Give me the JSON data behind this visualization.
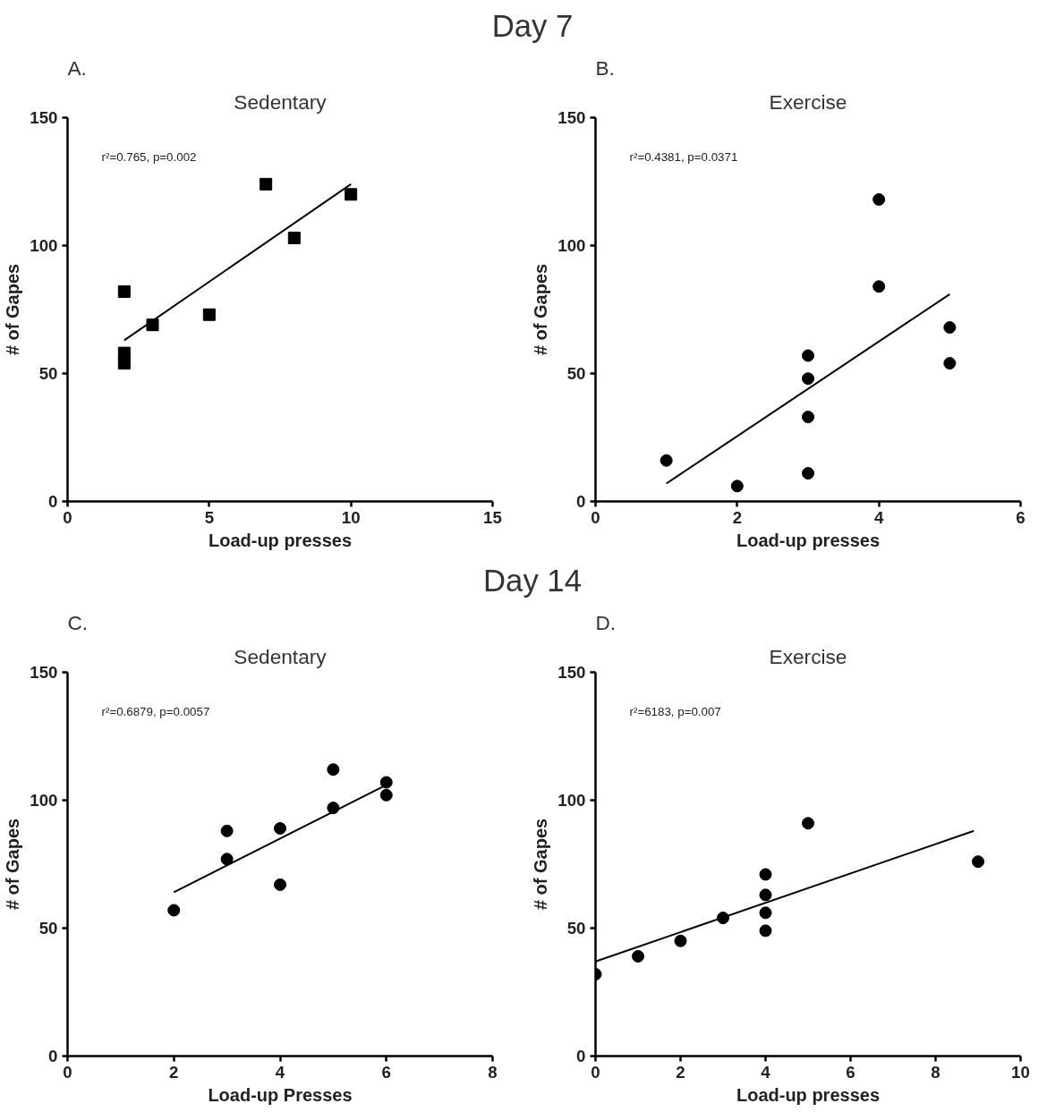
{
  "chart_data": [
    {
      "type": "scatter",
      "title": "Sedentary",
      "xlabel": "Load-up presses",
      "ylabel": "# of Gapes",
      "grid": false,
      "annotations": [
        "A.",
        "r²=0.765, p=0.002",
        "Day 7"
      ],
      "xlim": [
        0,
        15
      ],
      "xticks": [
        0,
        5,
        10,
        15
      ],
      "ylim": [
        0,
        150
      ],
      "yticks": [
        0,
        50,
        100,
        150
      ],
      "series": [
        {
          "marker": "square",
          "color": "#000000",
          "x": [
            2,
            2,
            2,
            3,
            5,
            7,
            8,
            10
          ],
          "values": [
            82,
            58,
            54,
            69,
            73,
            124,
            103,
            120
          ]
        },
        {
          "type": "line",
          "marker": "none",
          "color": "#000000",
          "x": [
            2,
            10
          ],
          "values": [
            63,
            124
          ]
        }
      ]
    },
    {
      "type": "scatter",
      "title": "Exercise",
      "xlabel": "Load-up presses",
      "ylabel": "# of Gapes",
      "grid": false,
      "annotations": [
        "B.",
        "r²=0.4381, p=0.0371"
      ],
      "xlim": [
        0,
        6
      ],
      "xticks": [
        0,
        2,
        4,
        6
      ],
      "ylim": [
        0,
        150
      ],
      "yticks": [
        0,
        50,
        100,
        150
      ],
      "series": [
        {
          "marker": "circle",
          "color": "#000000",
          "x": [
            1,
            2,
            3,
            3,
            3,
            3,
            4,
            4,
            5,
            5
          ],
          "values": [
            16,
            6,
            57,
            48,
            33,
            11,
            118,
            84,
            68,
            54
          ]
        },
        {
          "type": "line",
          "marker": "none",
          "color": "#000000",
          "x": [
            1,
            5
          ],
          "values": [
            7,
            81
          ]
        }
      ]
    },
    {
      "type": "scatter",
      "title": "Sedentary",
      "xlabel": "Load-up Presses",
      "ylabel": "# of Gapes",
      "grid": false,
      "annotations": [
        "C.",
        "r²=0.6879, p=0.0057",
        "Day 14"
      ],
      "xlim": [
        0,
        8
      ],
      "xticks": [
        0,
        2,
        4,
        6,
        8
      ],
      "ylim": [
        0,
        150
      ],
      "yticks": [
        0,
        50,
        100,
        150
      ],
      "series": [
        {
          "marker": "circle",
          "color": "#000000",
          "x": [
            2,
            3,
            3,
            4,
            4,
            5,
            5,
            6,
            6
          ],
          "values": [
            57,
            88,
            77,
            89,
            67,
            112,
            97,
            107,
            102
          ]
        },
        {
          "type": "line",
          "marker": "none",
          "color": "#000000",
          "x": [
            2,
            6
          ],
          "values": [
            64,
            106
          ]
        }
      ]
    },
    {
      "type": "scatter",
      "title": "Exercise",
      "xlabel": "Load-up presses",
      "ylabel": "# of Gapes",
      "grid": false,
      "annotations": [
        "D.",
        "r²=6183, p=0.007"
      ],
      "xlim": [
        0,
        10
      ],
      "xticks": [
        0,
        2,
        4,
        6,
        8,
        10
      ],
      "ylim": [
        0,
        150
      ],
      "yticks": [
        0,
        50,
        100,
        150
      ],
      "series": [
        {
          "marker": "circle",
          "color": "#000000",
          "x": [
            0,
            1,
            2,
            3,
            4,
            4,
            4,
            4,
            5,
            9
          ],
          "values": [
            32,
            39,
            45,
            54,
            71,
            63,
            56,
            49,
            91,
            76
          ]
        },
        {
          "type": "line",
          "marker": "none",
          "color": "#000000",
          "x": [
            0,
            8.9
          ],
          "values": [
            37,
            88
          ]
        }
      ]
    }
  ]
}
